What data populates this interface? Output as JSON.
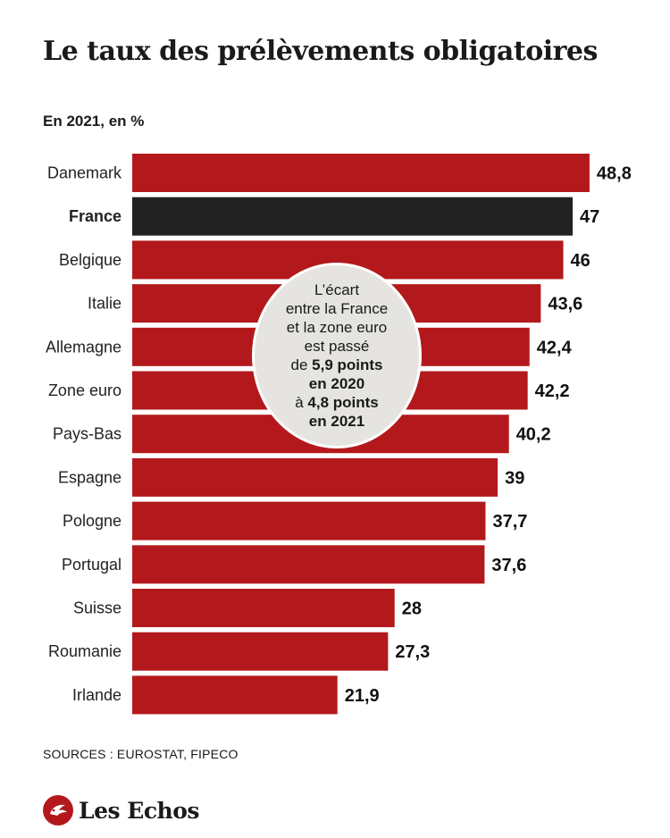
{
  "header": {
    "title": "Le taux des prélèvements obligatoires",
    "subtitle": "En 2021, en %"
  },
  "colors": {
    "bar": "#b3191c",
    "highlight": "#222222"
  },
  "chart_data": {
    "type": "bar",
    "orientation": "horizontal",
    "title": "Le taux des prélèvements obligatoires",
    "subtitle": "En 2021, en %",
    "categories": [
      "Danemark",
      "France",
      "Belgique",
      "Italie",
      "Allemagne",
      "Zone euro",
      "Pays-Bas",
      "Espagne",
      "Pologne",
      "Portugal",
      "Suisse",
      "Roumanie",
      "Irlande"
    ],
    "values": [
      48.8,
      47,
      46,
      43.6,
      42.4,
      42.2,
      40.2,
      39,
      37.7,
      37.6,
      28,
      27.3,
      21.9
    ],
    "value_labels": [
      "48,8",
      "47",
      "46",
      "43,6",
      "42,4",
      "42,2",
      "40,2",
      "39",
      "37,7",
      "37,6",
      "28",
      "27,3",
      "21,9"
    ],
    "highlight": "France",
    "grid": false,
    "legend": "none"
  },
  "callout": {
    "line1": "L’écart",
    "line2": "entre la France",
    "line3": "et la zone euro",
    "line4": "est passé",
    "line5_prefix": "de ",
    "line5_bold": "5,9 points",
    "line6_bold": "en 2020",
    "line7_prefix": "à ",
    "line7_bold": "4,8 points",
    "line8_bold": "en 2021"
  },
  "footer": {
    "source": "SOURCES : EUROSTAT, FIPECO",
    "logo_text": "Les Echos"
  }
}
